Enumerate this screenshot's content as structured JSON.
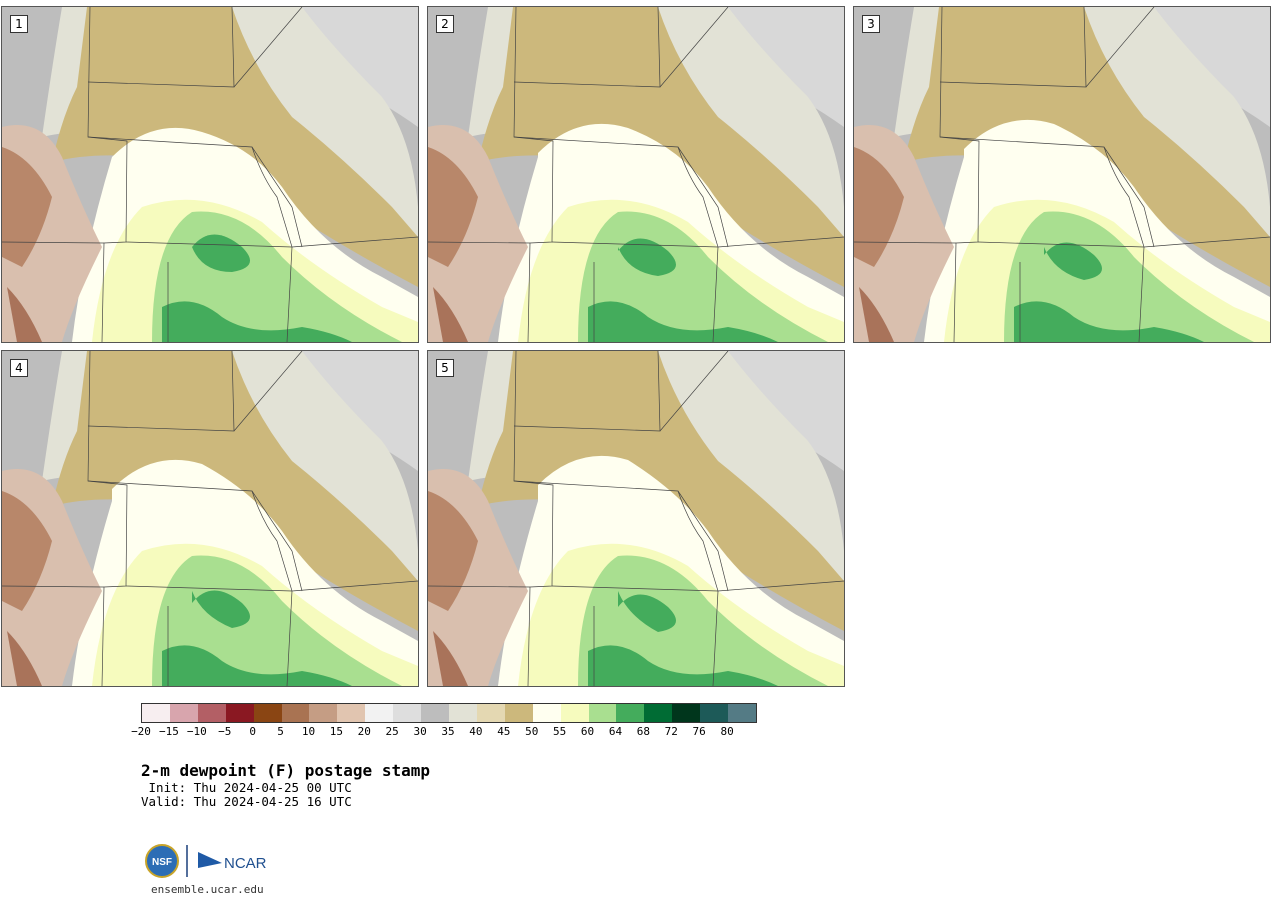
{
  "members": [
    {
      "label": "1"
    },
    {
      "label": "2"
    },
    {
      "label": "3"
    },
    {
      "label": "4"
    },
    {
      "label": "5"
    }
  ],
  "colorbar": {
    "colors": [
      "#f7eef0",
      "#d8a5ad",
      "#b35f65",
      "#8a1822",
      "#8a4513",
      "#a97352",
      "#c59d84",
      "#e1c5b0",
      "#f2f2f2",
      "#dedede",
      "#bdbdbd",
      "#e2e2d6",
      "#e4d8b2",
      "#ccb87c",
      "#fffff0",
      "#f6fbbe",
      "#a9df90",
      "#44ac5c",
      "#006c34",
      "#00361c",
      "#1d5a58",
      "#547b85"
    ],
    "ticks": [
      "−20",
      "−15",
      "−10",
      "−5",
      "0",
      "5",
      "10",
      "15",
      "20",
      "25",
      "30",
      "35",
      "40",
      "45",
      "50",
      "55",
      "60",
      "64",
      "68",
      "72",
      "76",
      "80"
    ]
  },
  "title": "2-m dewpoint (F) postage stamp",
  "init": " Init: Thu 2024-04-25 00 UTC",
  "valid": "Valid: Thu 2024-04-25 16 UTC",
  "logo": {
    "nsf": "NSF",
    "ncar": "NCAR"
  },
  "site": "ensemble.ucar.edu"
}
